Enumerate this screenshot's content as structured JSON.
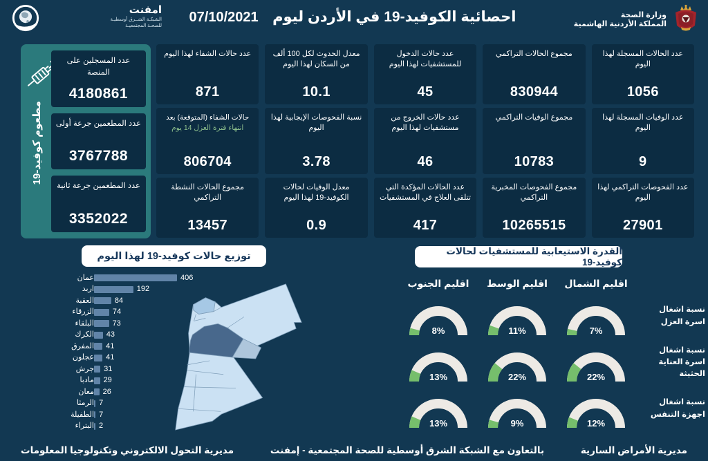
{
  "header": {
    "title": "احصائية الكوفيد-19 في الأردن ليوم",
    "date": "07/10/2021",
    "emphnet": {
      "name": "امفنت",
      "line1": "الشبكـة الشــرق أوسطيـة",
      "line2": "للصحـة المجتمعيـة"
    },
    "moh": {
      "line1": "وزارة الصحة",
      "line2": "المملكة الأردنية الهاشمية"
    }
  },
  "vaccine_panel": {
    "vertical_label": "مطعوم كوفيد-19",
    "cards": [
      {
        "label": "عدد المسجلين على المنصة",
        "value": "4180861"
      },
      {
        "label": "عدد المطعمين جرعة أولى",
        "value": "3767788"
      },
      {
        "label": "عدد المطعمين جرعة ثانية",
        "value": "3352022"
      }
    ]
  },
  "stats": {
    "rows": [
      [
        {
          "label": "عدد الحالات المسجلة لهذا اليوم",
          "value": "1056"
        },
        {
          "label": "مجموع الحالات التراكمي",
          "value": "830944"
        },
        {
          "label": "عدد حالات الدخول للمستشفيات لهذا اليوم",
          "value": "45"
        },
        {
          "label": "معدل الحدوث لكل 100 ألف من السكان لهذا اليوم",
          "value": "10.1"
        },
        {
          "label": "عدد حالات الشفاء لهذا اليوم",
          "value": "871"
        }
      ],
      [
        {
          "label": "عدد الوفيات المسجلة لهذا اليوم",
          "value": "9"
        },
        {
          "label": "مجموع الوفيات التراكمي",
          "value": "10783"
        },
        {
          "label": "عدد حالات الخروج من مستشفيات لهذا اليوم",
          "value": "46"
        },
        {
          "label": "نسبة الفحوصات الإيجابية لهذا اليوم",
          "value": "3.78"
        },
        {
          "label": "حالات الشفاء (المتوقعة) بعد ",
          "label_green": "انتهاء فترة العزل 14 يوم",
          "value": "806704"
        }
      ],
      [
        {
          "label": "عدد الفحوصات التراكمي لهذا اليوم",
          "value": "27901"
        },
        {
          "label": "مجموع الفحوصات المخبرية التراكمي",
          "value": "10265515"
        },
        {
          "label": "عدد الحالات المؤكدة التي تتلقى العلاج في المستشفيات",
          "value": "417"
        },
        {
          "label": "معدل الوفيات لحالات الكوفيد-19 لهذا اليوم",
          "value": "0.9"
        },
        {
          "label": "مجموع الحالات النشطة التراكمي",
          "value": "13457"
        }
      ]
    ]
  },
  "chart_data": [
    {
      "type": "bar",
      "title": "توزيع حالات كوفيد-19 لهذا اليوم",
      "orientation": "horizontal",
      "categories": [
        "عمان",
        "اربد",
        "العقبة",
        "الزرقاء",
        "البلقاء",
        "الكرك",
        "المفرق",
        "عجلون",
        "جرش",
        "مادبا",
        "معان",
        "الرمثا",
        "الطفيلة",
        "البتراء"
      ],
      "values": [
        406,
        192,
        84,
        74,
        73,
        43,
        41,
        41,
        31,
        29,
        26,
        7,
        7,
        2
      ],
      "value_labels": true,
      "bar_color": "#6184A8"
    },
    {
      "type": "gauge",
      "title": "القدرة الاستيعابية للمستشفيات لحالات كوفيد-19",
      "unit": "%",
      "columns": [
        "اقليم الجنوب",
        "اقليم الوسط",
        "اقليم الشمال"
      ],
      "rows": [
        {
          "label": "نسبة اشغال اسرة العزل",
          "values": [
            8,
            11,
            7
          ]
        },
        {
          "label": "نسبة اشغال اسرة العناية الحثيثة",
          "values": [
            13,
            22,
            22
          ]
        },
        {
          "label": "نسبة اشغال اجهزة التنفس",
          "values": [
            13,
            9,
            12
          ]
        }
      ],
      "gauge_color": "#76BE6C",
      "track_color": "#EDEAE5"
    }
  ],
  "footer": {
    "right": "مديرية الأمراض السارية",
    "center": "بالتعاون مع الشبكة الشرق أوسطية للصحة المجتمعية - إمفنت",
    "left": "مديرية التحول الالكتروني وتكنولوجيا المعلومات"
  },
  "colors": {
    "background": "#123852",
    "card": "#0C2C42",
    "teal_panel": "#2B7A7C",
    "bar": "#6184A8",
    "gauge_green": "#76BE6C",
    "gauge_track": "#EDEAE5",
    "map_light": "#CBE1F3",
    "map_medium": "#A6C8E5",
    "map_dark": "#48688C",
    "green_label": "#8CBE8C"
  }
}
